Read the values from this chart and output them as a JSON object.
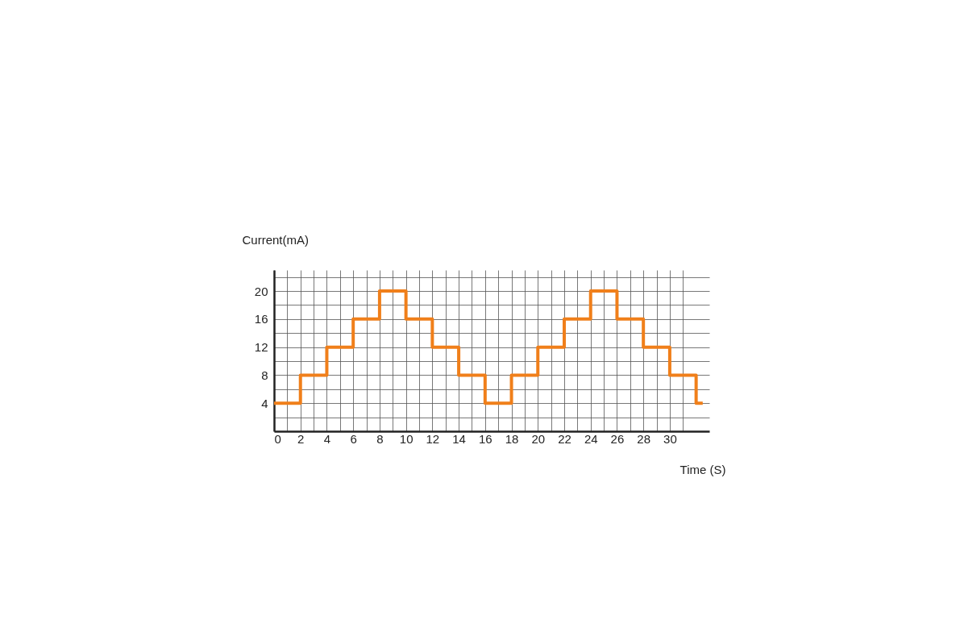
{
  "chart_data": {
    "type": "step",
    "xlabel": "Time (S)",
    "ylabel": "Current(mA)",
    "x": [
      0,
      2,
      4,
      6,
      8,
      10,
      12,
      14,
      16,
      18,
      20,
      22,
      24,
      26,
      28,
      30,
      32,
      32.5
    ],
    "series": [
      {
        "color": "#f07f1a",
        "values": [
          4,
          8,
          12,
          16,
          20,
          16,
          12,
          8,
          4,
          8,
          12,
          16,
          20,
          16,
          12,
          8,
          4,
          4
        ]
      }
    ],
    "xlim": [
      0,
      33
    ],
    "ylim": [
      0,
      23
    ],
    "xticks": [
      0,
      {
        "value": 1,
        "label": null
      },
      2,
      {
        "value": 3,
        "label": null
      },
      4,
      {
        "value": 5,
        "label": null
      },
      6,
      {
        "value": 7,
        "label": null
      },
      8,
      {
        "value": 9,
        "label": null
      },
      10,
      {
        "value": 11,
        "label": null
      },
      12,
      {
        "value": 13,
        "label": null
      },
      14,
      {
        "value": 15,
        "label": null
      },
      16,
      {
        "value": 17,
        "label": null
      },
      18,
      {
        "value": 19,
        "label": null
      },
      20,
      {
        "value": 21,
        "label": null
      },
      22,
      {
        "value": 23,
        "label": null
      },
      24,
      {
        "value": 25,
        "label": null
      },
      26,
      {
        "value": 27,
        "label": null
      },
      28,
      {
        "value": 29,
        "label": null
      },
      30,
      {
        "value": 31,
        "label": null
      }
    ],
    "yticks": [
      {
        "value": 2,
        "label": null
      },
      4,
      {
        "value": 6,
        "label": null
      },
      8,
      {
        "value": 10,
        "label": null
      },
      12,
      {
        "value": 14,
        "label": null
      },
      16,
      {
        "value": 18,
        "label": null
      },
      20,
      {
        "value": 22,
        "label": null
      }
    ],
    "grid": true,
    "legend": false,
    "marker": "none",
    "line_style": "solid"
  }
}
